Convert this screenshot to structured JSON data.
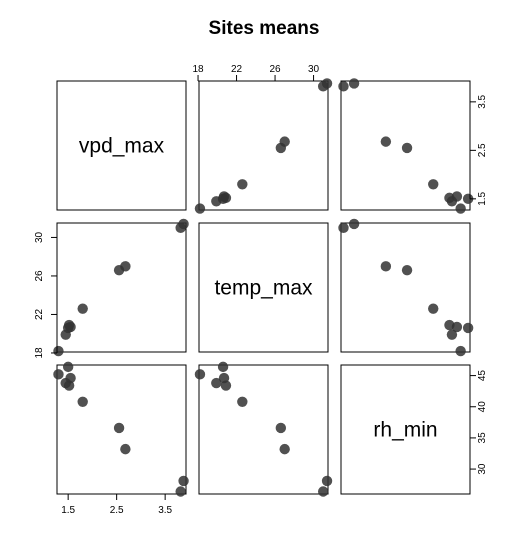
{
  "chart_data": {
    "type": "scatter",
    "title": "Sites means",
    "variables": [
      "vpd_max",
      "temp_max",
      "rh_min"
    ],
    "ranges": {
      "vpd_max": [
        1.27,
        3.93
      ],
      "temp_max": [
        18.1,
        31.5
      ],
      "rh_min": [
        26.0,
        46.7
      ]
    },
    "ticks": {
      "vpd_max": [
        1.5,
        2.5,
        3.5
      ],
      "temp_max": [
        18,
        22,
        26,
        30
      ],
      "rh_min": [
        30,
        35,
        40,
        45
      ]
    },
    "tick_labels": {
      "top": [
        "18",
        "22",
        "26",
        "30"
      ],
      "right_row1": [
        "1.5",
        "2.5",
        "3.5"
      ],
      "left_row2": [
        "18",
        "22",
        "26",
        "30"
      ],
      "right_row3": [
        "30",
        "35",
        "40",
        "45"
      ],
      "bottom": [
        "1.5",
        "2.5",
        "3.5"
      ]
    },
    "points": [
      {
        "vpd_max": 1.3,
        "temp_max": 18.2,
        "rh_min": 45.2
      },
      {
        "vpd_max": 1.45,
        "temp_max": 19.9,
        "rh_min": 43.8
      },
      {
        "vpd_max": 1.5,
        "temp_max": 20.6,
        "rh_min": 46.4
      },
      {
        "vpd_max": 1.52,
        "temp_max": 20.9,
        "rh_min": 43.4
      },
      {
        "vpd_max": 1.55,
        "temp_max": 20.7,
        "rh_min": 44.6
      },
      {
        "vpd_max": 1.8,
        "temp_max": 22.6,
        "rh_min": 40.8
      },
      {
        "vpd_max": 2.55,
        "temp_max": 26.6,
        "rh_min": 36.6
      },
      {
        "vpd_max": 2.68,
        "temp_max": 27.0,
        "rh_min": 33.2
      },
      {
        "vpd_max": 3.82,
        "temp_max": 31.0,
        "rh_min": 26.4
      },
      {
        "vpd_max": 3.88,
        "temp_max": 31.4,
        "rh_min": 28.1
      }
    ],
    "point_color": "#333333",
    "grid": false,
    "legend": "none"
  }
}
